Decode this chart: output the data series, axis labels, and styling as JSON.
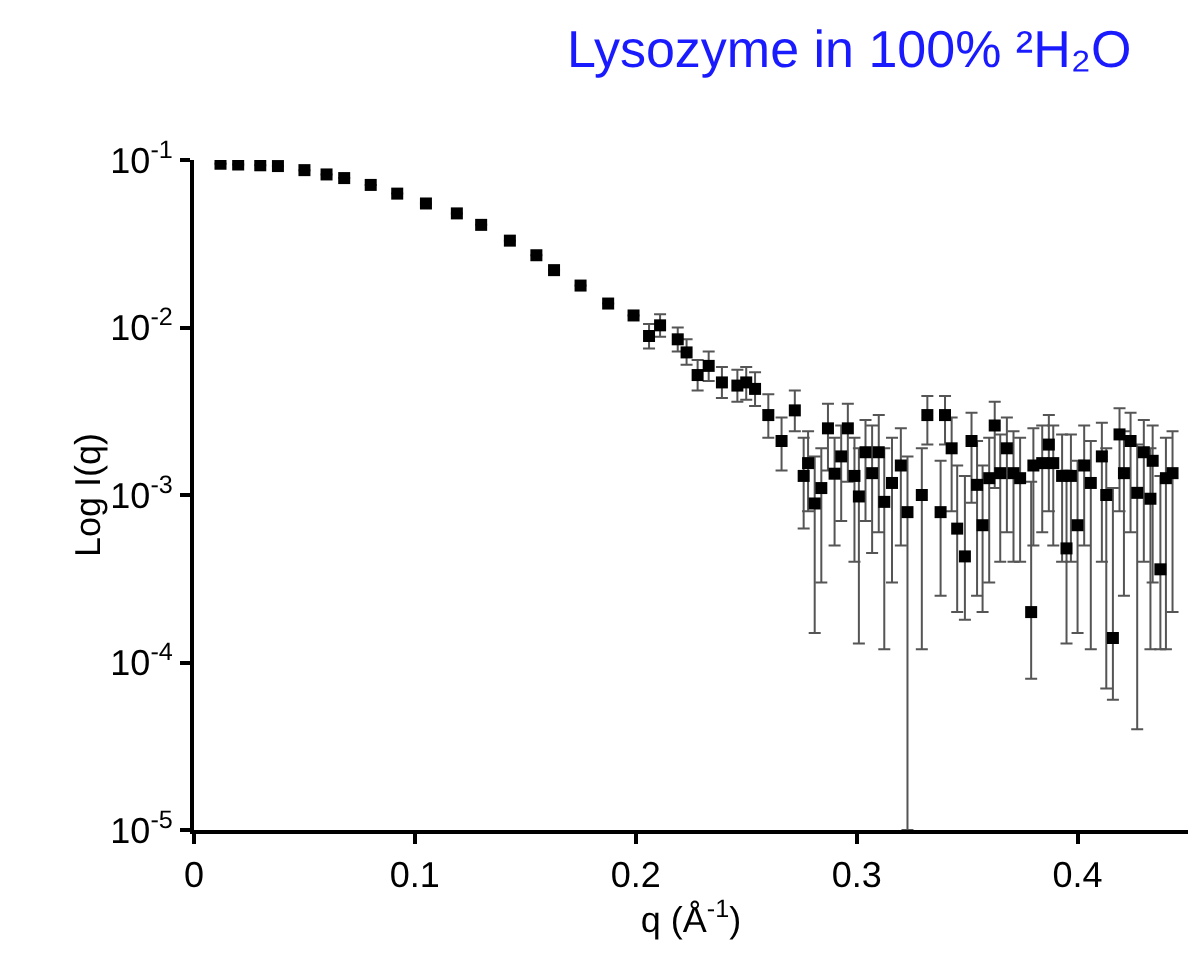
{
  "chart_data": {
    "type": "scatter",
    "title": "Lysozyme in 100% ²H₂O",
    "xlabel": "q (Å$^{-1}$)",
    "ylabel": "Log I(q)",
    "log": "y",
    "marker": "square",
    "xlim": [
      0,
      0.45
    ],
    "xticks": [
      0,
      0.1,
      0.2,
      0.3,
      0.4
    ],
    "ylim": [
      1e-05,
      0.1
    ],
    "yticks": [
      {
        "value": 1e-05,
        "label": "10$^{-5}$"
      },
      {
        "value": 0.0001,
        "label": "10$^{-4}$"
      },
      {
        "value": 0.001,
        "label": "10$^{-3}$"
      },
      {
        "value": 0.01,
        "label": "10$^{-2}$"
      },
      {
        "value": 0.1,
        "label": "10$^{-1}$"
      }
    ],
    "series": [
      {
        "color": "#000000",
        "x": [
          0.012,
          0.02,
          0.03,
          0.038,
          0.05,
          0.06,
          0.068,
          0.08,
          0.092,
          0.105,
          0.119,
          0.13,
          0.143,
          0.155,
          0.163,
          0.175,
          0.1875,
          0.199,
          0.206,
          0.211,
          0.219,
          0.223,
          0.228,
          0.233,
          0.239,
          0.246,
          0.25,
          0.254,
          0.26,
          0.266,
          0.272,
          0.276,
          0.278,
          0.281,
          0.284,
          0.287,
          0.29,
          0.293,
          0.296,
          0.299,
          0.301,
          0.304,
          0.307,
          0.31,
          0.3125,
          0.316,
          0.32,
          0.323,
          0.3295,
          0.332,
          0.338,
          0.34,
          0.343,
          0.3455,
          0.349,
          0.352,
          0.3545,
          0.357,
          0.36,
          0.3625,
          0.365,
          0.368,
          0.371,
          0.374,
          0.379,
          0.38,
          0.384,
          0.387,
          0.389,
          0.393,
          0.395,
          0.397,
          0.4,
          0.403,
          0.406,
          0.411,
          0.413,
          0.416,
          0.419,
          0.421,
          0.424,
          0.427,
          0.43,
          0.433,
          0.434,
          0.4375,
          0.44,
          0.443
        ],
        "values": [
          0.095,
          0.094,
          0.093,
          0.092,
          0.087,
          0.082,
          0.078,
          0.071,
          0.063,
          0.055,
          0.048,
          0.041,
          0.033,
          0.027,
          0.022,
          0.0178,
          0.0139,
          0.0118,
          0.0089,
          0.0103,
          0.0085,
          0.0071,
          0.0052,
          0.0059,
          0.0047,
          0.0045,
          0.0047,
          0.0043,
          0.003,
          0.0021,
          0.0032,
          0.0013,
          0.00155,
          0.00089,
          0.0011,
          0.0025,
          0.00134,
          0.0017,
          0.0025,
          0.0013,
          0.00098,
          0.0018,
          0.00135,
          0.0018,
          0.00091,
          0.00118,
          0.0015,
          0.00079,
          0.001,
          0.003,
          0.00079,
          0.003,
          0.0019,
          0.00063,
          0.00043,
          0.0021,
          0.00115,
          0.00066,
          0.00126,
          0.0026,
          0.00135,
          0.0019,
          0.00135,
          0.00126,
          0.0002,
          0.0015,
          0.00155,
          0.002,
          0.00155,
          0.0013,
          0.00048,
          0.0013,
          0.00066,
          0.0015,
          0.00118,
          0.0017,
          0.001,
          0.00014,
          0.0023,
          0.00135,
          0.0021,
          0.00103,
          0.0018,
          0.00095,
          0.0016,
          0.00036,
          0.00126,
          0.00135
        ],
        "errors": [
          null,
          null,
          null,
          null,
          null,
          null,
          null,
          null,
          null,
          null,
          null,
          null,
          null,
          null,
          null,
          null,
          null,
          null,
          [
            0.0075,
            0.0105
          ],
          [
            0.0088,
            0.012
          ],
          [
            0.0072,
            0.01
          ],
          [
            0.006,
            0.0085
          ],
          [
            0.0042,
            0.0064
          ],
          [
            0.0048,
            0.0072
          ],
          [
            0.0038,
            0.0058
          ],
          [
            0.0036,
            0.0056
          ],
          [
            0.0037,
            0.0058
          ],
          [
            0.0034,
            0.0054
          ],
          [
            0.0022,
            0.004
          ],
          [
            0.0014,
            0.0029
          ],
          [
            0.0024,
            0.0042
          ],
          [
            0.00063,
            0.0022
          ],
          [
            0.0008,
            0.0024
          ],
          [
            0.00015,
            0.0017
          ],
          [
            0.0003,
            0.0019
          ],
          [
            0.0014,
            0.0035
          ],
          [
            0.0005,
            0.0022
          ],
          [
            0.0007,
            0.0026
          ],
          [
            0.0012,
            0.0035
          ],
          [
            0.0004,
            0.0022
          ],
          [
            0.00013,
            0.0019
          ],
          [
            0.0007,
            0.0028
          ],
          [
            0.00045,
            0.0026
          ],
          [
            0.0006,
            0.003
          ],
          [
            0.00012,
            0.0019
          ],
          [
            0.0003,
            0.0022
          ],
          [
            0.0005,
            0.0025
          ],
          [
            1e-05,
            0.0017
          ],
          [
            0.00012,
            0.0019
          ],
          [
            0.002,
            0.0039
          ],
          [
            0.00025,
            0.0016
          ],
          [
            0.002,
            0.0039
          ],
          [
            0.0008,
            0.0029
          ],
          [
            0.0002,
            0.0015
          ],
          [
            0.00018,
            0.0013
          ],
          [
            0.0009,
            0.0031
          ],
          [
            0.00025,
            0.0021
          ],
          [
            0.0002,
            0.0015
          ],
          [
            0.0003,
            0.0022
          ],
          [
            0.0011,
            0.0036
          ],
          [
            0.0004,
            0.0023
          ],
          [
            0.0006,
            0.0029
          ],
          [
            0.0004,
            0.0024
          ],
          [
            0.0004,
            0.0022
          ],
          [
            8e-05,
            0.0012
          ],
          [
            0.0005,
            0.0025
          ],
          [
            0.0006,
            0.0026
          ],
          [
            0.0008,
            0.003
          ],
          [
            0.0005,
            0.0026
          ],
          [
            0.0004,
            0.0023
          ],
          [
            0.00013,
            0.0014
          ],
          [
            0.0004,
            0.0023
          ],
          [
            0.00015,
            0.0016
          ],
          [
            0.0005,
            0.0026
          ],
          [
            0.00012,
            0.0021
          ],
          [
            0.0004,
            0.0027
          ],
          [
            7e-05,
            0.0019
          ],
          [
            6e-05,
            0.0011
          ],
          [
            0.0008,
            0.0033
          ],
          [
            0.00025,
            0.0024
          ],
          [
            0.0006,
            0.0031
          ],
          [
            4e-05,
            0.002
          ],
          [
            0.0004,
            0.0028
          ],
          [
            0.00012,
            0.0019
          ],
          [
            0.0003,
            0.0026
          ],
          [
            0.00012,
            0.0013
          ],
          [
            0.00012,
            0.0022
          ],
          [
            0.0002,
            0.0024
          ]
        ]
      }
    ]
  }
}
